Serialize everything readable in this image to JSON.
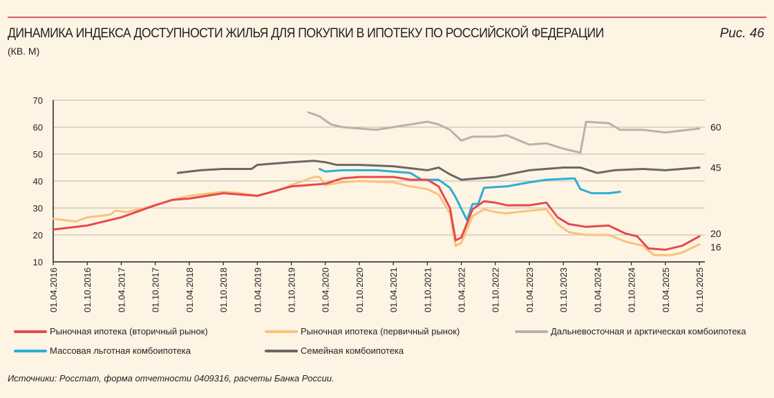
{
  "header": {
    "title": "ДИНАМИКА ИНДЕКСА ДОСТУПНОСТИ ЖИЛЬЯ ДЛЯ ПОКУПКИ В ИПОТЕКУ ПО РОССИЙСКОЙ ФЕДЕРАЦИИ",
    "units": "(КВ. М)",
    "figure": "Рис. 46"
  },
  "source": "Источники: Росстат, форма отчетности 0409316, расчеты Банка России.",
  "chart_data": {
    "type": "line",
    "title": "ДИНАМИКА ИНДЕКСА ДОСТУПНОСТИ ЖИЛЬЯ ДЛЯ ПОКУПКИ В ИПОТЕКУ ПО РОССИЙСКОЙ ФЕДЕРАЦИИ",
    "ylabel": "(КВ. М)",
    "ylim": [
      10,
      70
    ],
    "yticks": [
      10,
      20,
      30,
      40,
      50,
      60,
      70
    ],
    "xlim": [
      "2016-04",
      "2025-10"
    ],
    "xticks": [
      "01.04.2016",
      "01.10.2016",
      "01.04.2017",
      "01.10.2017",
      "01.04.2018",
      "01.10.2018",
      "01.04.2019",
      "01.10.2019",
      "01.04.2020",
      "01.10.2020",
      "01.04.2021",
      "01.10.2021",
      "01.04.2022",
      "01.10.2022",
      "01.04.2023",
      "01.10.2023",
      "01.04.2024",
      "01.10.2024",
      "01.04.2025",
      "01.10.2025"
    ],
    "grid": "horizontal",
    "legend_position": "bottom",
    "end_labels": [
      {
        "text": "60",
        "value": 60
      },
      {
        "text": "45",
        "value": 45
      },
      {
        "text": "20",
        "value": 20
      },
      {
        "text": "16",
        "value": 16
      }
    ],
    "series": [
      {
        "name": "Рыночная ипотека (вторичный рынок)",
        "color": "#e8484b",
        "points": [
          [
            "2016-04",
            22
          ],
          [
            "2016-10",
            23.5
          ],
          [
            "2017-04",
            26.5
          ],
          [
            "2017-10",
            31
          ],
          [
            "2018-01",
            33
          ],
          [
            "2018-04",
            33.5
          ],
          [
            "2018-10",
            35.5
          ],
          [
            "2019-04",
            34.5
          ],
          [
            "2019-10",
            38
          ],
          [
            "2020-01",
            38.5
          ],
          [
            "2020-04",
            39
          ],
          [
            "2020-07",
            41
          ],
          [
            "2020-10",
            41.5
          ],
          [
            "2021-04",
            41.5
          ],
          [
            "2021-07",
            40.5
          ],
          [
            "2021-10",
            40.5
          ],
          [
            "2021-12",
            38
          ],
          [
            "2022-02",
            30
          ],
          [
            "2022-03",
            18
          ],
          [
            "2022-04",
            19
          ],
          [
            "2022-06",
            29.5
          ],
          [
            "2022-08",
            32.5
          ],
          [
            "2022-10",
            32
          ],
          [
            "2022-12",
            31
          ],
          [
            "2023-04",
            31
          ],
          [
            "2023-07",
            32
          ],
          [
            "2023-09",
            26.5
          ],
          [
            "2023-11",
            24
          ],
          [
            "2024-02",
            23
          ],
          [
            "2024-06",
            23.5
          ],
          [
            "2024-09",
            20.5
          ],
          [
            "2024-11",
            19.5
          ],
          [
            "2025-01",
            15
          ],
          [
            "2025-04",
            14.5
          ],
          [
            "2025-07",
            16
          ],
          [
            "2025-10",
            19.5
          ]
        ]
      },
      {
        "name": "Рыночная ипотека (первичный рынок)",
        "color": "#f9c27a",
        "points": [
          [
            "2016-04",
            26
          ],
          [
            "2016-08",
            25
          ],
          [
            "2016-10",
            26.5
          ],
          [
            "2017-02",
            27.5
          ],
          [
            "2017-03",
            29
          ],
          [
            "2017-05",
            28.5
          ],
          [
            "2017-10",
            31
          ],
          [
            "2018-01",
            33
          ],
          [
            "2018-04",
            34.5
          ],
          [
            "2018-10",
            36
          ],
          [
            "2019-01",
            35.5
          ],
          [
            "2019-04",
            34.5
          ],
          [
            "2019-07",
            36
          ],
          [
            "2019-10",
            38.5
          ],
          [
            "2020-02",
            41.5
          ],
          [
            "2020-03",
            41.5
          ],
          [
            "2020-04",
            38.5
          ],
          [
            "2020-07",
            39.5
          ],
          [
            "2020-10",
            40
          ],
          [
            "2021-04",
            39.5
          ],
          [
            "2021-07",
            38
          ],
          [
            "2021-10",
            37
          ],
          [
            "2021-12",
            35
          ],
          [
            "2022-02",
            28
          ],
          [
            "2022-03",
            16
          ],
          [
            "2022-04",
            17
          ],
          [
            "2022-06",
            27
          ],
          [
            "2022-08",
            29.5
          ],
          [
            "2022-10",
            28.5
          ],
          [
            "2022-12",
            28
          ],
          [
            "2023-04",
            29
          ],
          [
            "2023-07",
            29.5
          ],
          [
            "2023-09",
            24
          ],
          [
            "2023-11",
            21
          ],
          [
            "2024-02",
            20
          ],
          [
            "2024-06",
            20
          ],
          [
            "2024-09",
            17.5
          ],
          [
            "2024-12",
            16
          ],
          [
            "2025-02",
            12.5
          ],
          [
            "2025-05",
            12.5
          ],
          [
            "2025-07",
            13.5
          ],
          [
            "2025-10",
            16.5
          ]
        ]
      },
      {
        "name": "Дальневосточная и арктическая комбоипотека",
        "color": "#b7b2aa",
        "points": [
          [
            "2020-01",
            65.5
          ],
          [
            "2020-03",
            64
          ],
          [
            "2020-05",
            61
          ],
          [
            "2020-07",
            60
          ],
          [
            "2020-10",
            59.5
          ],
          [
            "2021-01",
            59
          ],
          [
            "2021-04",
            60
          ],
          [
            "2021-07",
            61
          ],
          [
            "2021-10",
            62
          ],
          [
            "2021-12",
            61
          ],
          [
            "2022-02",
            59
          ],
          [
            "2022-04",
            55
          ],
          [
            "2022-06",
            56.5
          ],
          [
            "2022-10",
            56.5
          ],
          [
            "2022-12",
            57
          ],
          [
            "2023-04",
            53.5
          ],
          [
            "2023-07",
            54
          ],
          [
            "2023-10",
            52
          ],
          [
            "2024-01",
            50.5
          ],
          [
            "2024-02",
            62
          ],
          [
            "2024-06",
            61.5
          ],
          [
            "2024-08",
            59
          ],
          [
            "2024-12",
            59
          ],
          [
            "2025-04",
            58
          ],
          [
            "2025-10",
            59.5
          ]
        ]
      },
      {
        "name": "Массовая льготная комбоипотека",
        "color": "#2aaed6",
        "points": [
          [
            "2020-03",
            44.5
          ],
          [
            "2020-04",
            43.5
          ],
          [
            "2020-07",
            44
          ],
          [
            "2021-01",
            44
          ],
          [
            "2021-07",
            43
          ],
          [
            "2021-09",
            40.5
          ],
          [
            "2021-12",
            40.5
          ],
          [
            "2022-02",
            37.5
          ],
          [
            "2022-03",
            34
          ],
          [
            "2022-05",
            25.5
          ],
          [
            "2022-06",
            31.5
          ],
          [
            "2022-07",
            31.5
          ],
          [
            "2022-08",
            37.5
          ],
          [
            "2022-12",
            38
          ],
          [
            "2023-04",
            39.5
          ],
          [
            "2023-07",
            40.5
          ],
          [
            "2023-12",
            41
          ],
          [
            "2024-01",
            37
          ],
          [
            "2024-03",
            35.5
          ],
          [
            "2024-06",
            35.5
          ],
          [
            "2024-08",
            36
          ]
        ]
      },
      {
        "name": "Семейная комбоипотека",
        "color": "#6b6763",
        "points": [
          [
            "2018-02",
            43
          ],
          [
            "2018-06",
            44
          ],
          [
            "2018-10",
            44.5
          ],
          [
            "2019-03",
            44.5
          ],
          [
            "2019-04",
            46
          ],
          [
            "2019-10",
            47
          ],
          [
            "2020-02",
            47.5
          ],
          [
            "2020-04",
            47
          ],
          [
            "2020-06",
            46
          ],
          [
            "2020-10",
            46
          ],
          [
            "2021-04",
            45.5
          ],
          [
            "2021-10",
            44
          ],
          [
            "2021-12",
            45
          ],
          [
            "2022-02",
            42.5
          ],
          [
            "2022-04",
            40.5
          ],
          [
            "2022-10",
            41.5
          ],
          [
            "2023-04",
            44
          ],
          [
            "2023-10",
            45
          ],
          [
            "2024-01",
            45
          ],
          [
            "2024-04",
            43
          ],
          [
            "2024-07",
            44
          ],
          [
            "2024-12",
            44.5
          ],
          [
            "2025-04",
            44
          ],
          [
            "2025-10",
            45
          ]
        ]
      }
    ]
  }
}
